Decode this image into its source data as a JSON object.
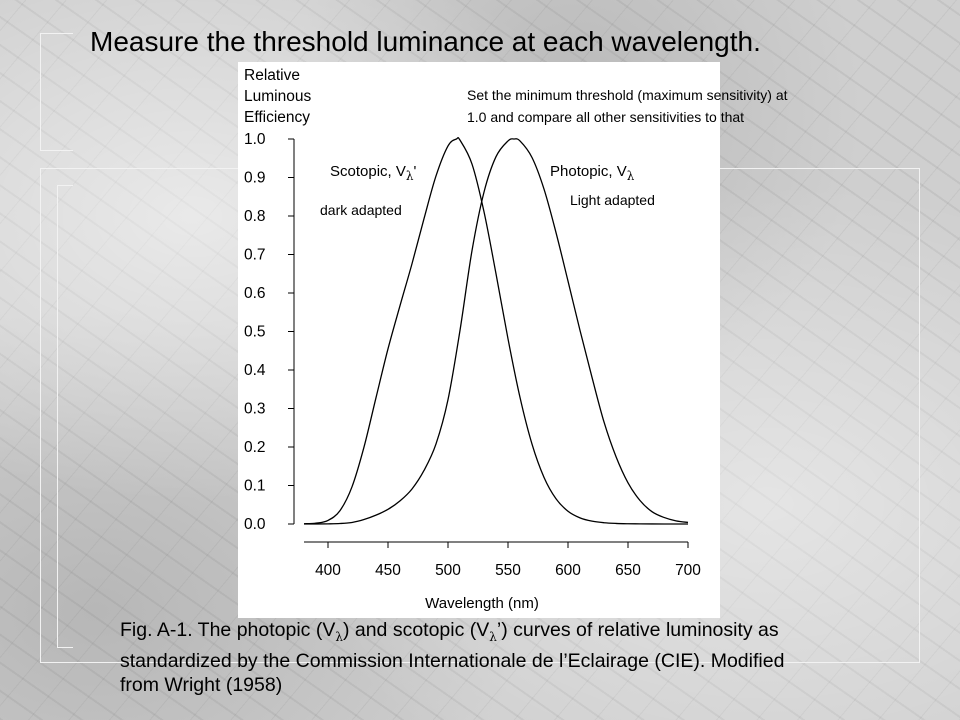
{
  "slide": {
    "title": "Measure the threshold luminance at each wavelength.",
    "caption": {
      "part1": "Fig. A-1. The photopic (V",
      "part2": ") and scotopic (V",
      "part3": "’) curves of relative luminosity as standardized by the Commission Internationale de l’Eclairage (CIE). Modified from Wright (1958)",
      "subscript": "λ"
    },
    "background": "gray marble texture"
  },
  "chart_data": {
    "type": "line",
    "ylabel_lines": [
      "Relative",
      "Luminous",
      "Efficiency"
    ],
    "xlabel": "Wavelength (nm)",
    "xlim": [
      380,
      700
    ],
    "ylim": [
      0,
      1
    ],
    "x_ticks": [
      400,
      450,
      500,
      550,
      600,
      650,
      700
    ],
    "y_ticks": [
      "0.0",
      "0.1",
      "0.2",
      "0.3",
      "0.4",
      "0.5",
      "0.6",
      "0.7",
      "0.8",
      "0.9",
      "1.0"
    ],
    "grid": false,
    "legend": "none",
    "annotations": {
      "note_line1": "Set the minimum threshold (maximum sensitivity) at",
      "note_line2": "1.0 and compare all other sensitivities to that",
      "scotopic_label": "Scotopic, V",
      "scotopic_sub": "λ",
      "scotopic_prime": "'",
      "scotopic_state": "dark adapted",
      "photopic_label": "Photopic, V",
      "photopic_sub": "λ",
      "photopic_state": "Light adapted"
    },
    "series": [
      {
        "name": "Scotopic, V'λ",
        "x": [
          380,
          390,
          400,
          410,
          420,
          430,
          440,
          450,
          460,
          470,
          480,
          490,
          500,
          507,
          510,
          520,
          530,
          540,
          550,
          560,
          570,
          580,
          590,
          600,
          610,
          620,
          630,
          640,
          650,
          660,
          670,
          680,
          690,
          700
        ],
        "y": [
          0.000589,
          0.002209,
          0.00929,
          0.03484,
          0.0966,
          0.1998,
          0.3281,
          0.455,
          0.567,
          0.676,
          0.793,
          0.904,
          0.982,
          1.0,
          0.997,
          0.935,
          0.811,
          0.65,
          0.481,
          0.3288,
          0.2076,
          0.1212,
          0.0655,
          0.03315,
          0.01593,
          0.00737,
          0.003335,
          0.001497,
          0.000677,
          0.000313,
          0.000148,
          7.15e-05,
          3.53e-05,
          1.78e-05
        ]
      },
      {
        "name": "Photopic, Vλ",
        "x": [
          380,
          390,
          400,
          410,
          420,
          430,
          440,
          450,
          460,
          470,
          480,
          490,
          500,
          510,
          520,
          530,
          540,
          550,
          555,
          560,
          570,
          580,
          590,
          600,
          610,
          620,
          630,
          640,
          650,
          660,
          670,
          680,
          690,
          700
        ],
        "y": [
          3.9e-05,
          0.00012,
          0.000396,
          0.00121,
          0.004,
          0.0116,
          0.023,
          0.038,
          0.06,
          0.091,
          0.139,
          0.208,
          0.323,
          0.503,
          0.71,
          0.862,
          0.954,
          0.995,
          1.0,
          0.995,
          0.952,
          0.87,
          0.757,
          0.631,
          0.503,
          0.381,
          0.265,
          0.175,
          0.107,
          0.061,
          0.032,
          0.017,
          0.0082,
          0.0041
        ]
      }
    ]
  }
}
